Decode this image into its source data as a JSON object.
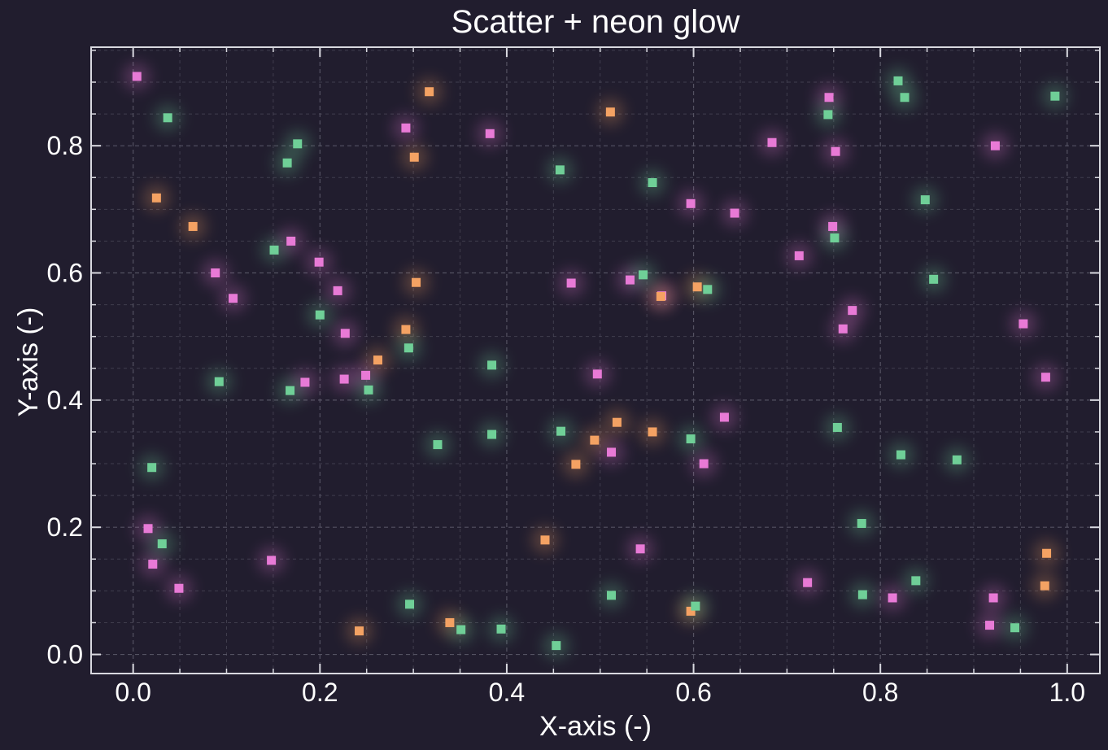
{
  "chart_data": {
    "type": "scatter",
    "title": "Scatter + neon glow",
    "xlabel": "X-axis (-)",
    "ylabel": "Y-axis (-)",
    "xlim": [
      -0.045,
      1.035
    ],
    "ylim": [
      -0.03,
      0.955
    ],
    "xticks": [
      0.0,
      0.2,
      0.4,
      0.6,
      0.8,
      1.0
    ],
    "xtick_labels": [
      "0.0",
      "0.2",
      "0.4",
      "0.6",
      "0.8",
      "1.0"
    ],
    "yticks": [
      0.0,
      0.2,
      0.4,
      0.6,
      0.8
    ],
    "ytick_labels": [
      "0.0",
      "0.2",
      "0.4",
      "0.6",
      "0.8"
    ],
    "grid": true,
    "colors": {
      "background": "#211d2e",
      "axes": "#d9d9e0",
      "grid": "#5a5868",
      "text": "#ffffff"
    },
    "series": [
      {
        "color": "#e87ad6",
        "points": [
          [
            0.004,
            0.909
          ],
          [
            0.292,
            0.828
          ],
          [
            0.382,
            0.819
          ],
          [
            0.169,
            0.65
          ],
          [
            0.199,
            0.617
          ],
          [
            0.088,
            0.6
          ],
          [
            0.107,
            0.56
          ],
          [
            0.219,
            0.572
          ],
          [
            0.227,
            0.505
          ],
          [
            0.184,
            0.428
          ],
          [
            0.226,
            0.433
          ],
          [
            0.249,
            0.439
          ],
          [
            0.016,
            0.198
          ],
          [
            0.021,
            0.142
          ],
          [
            0.049,
            0.104
          ],
          [
            0.148,
            0.148
          ],
          [
            0.469,
            0.584
          ],
          [
            0.532,
            0.589
          ],
          [
            0.566,
            0.564
          ],
          [
            0.597,
            0.709
          ],
          [
            0.644,
            0.694
          ],
          [
            0.684,
            0.805
          ],
          [
            0.713,
            0.627
          ],
          [
            0.745,
            0.876
          ],
          [
            0.752,
            0.791
          ],
          [
            0.749,
            0.673
          ],
          [
            0.77,
            0.541
          ],
          [
            0.76,
            0.512
          ],
          [
            0.497,
            0.441
          ],
          [
            0.512,
            0.318
          ],
          [
            0.611,
            0.3
          ],
          [
            0.633,
            0.373
          ],
          [
            0.543,
            0.166
          ],
          [
            0.722,
            0.113
          ],
          [
            0.813,
            0.089
          ],
          [
            0.923,
            0.8
          ],
          [
            0.953,
            0.52
          ],
          [
            0.977,
            0.436
          ],
          [
            0.921,
            0.089
          ],
          [
            0.917,
            0.046
          ]
        ]
      },
      {
        "color": "#f4a263",
        "points": [
          [
            0.317,
            0.885
          ],
          [
            0.511,
            0.853
          ],
          [
            0.301,
            0.782
          ],
          [
            0.025,
            0.718
          ],
          [
            0.064,
            0.673
          ],
          [
            0.303,
            0.585
          ],
          [
            0.292,
            0.511
          ],
          [
            0.262,
            0.463
          ],
          [
            0.565,
            0.563
          ],
          [
            0.604,
            0.578
          ],
          [
            0.518,
            0.365
          ],
          [
            0.556,
            0.35
          ],
          [
            0.494,
            0.337
          ],
          [
            0.474,
            0.299
          ],
          [
            0.441,
            0.18
          ],
          [
            0.339,
            0.05
          ],
          [
            0.242,
            0.037
          ],
          [
            0.597,
            0.068
          ],
          [
            0.978,
            0.159
          ],
          [
            0.976,
            0.108
          ]
        ]
      },
      {
        "color": "#6fcf97",
        "points": [
          [
            0.037,
            0.844
          ],
          [
            0.176,
            0.803
          ],
          [
            0.165,
            0.773
          ],
          [
            0.151,
            0.636
          ],
          [
            0.2,
            0.534
          ],
          [
            0.295,
            0.482
          ],
          [
            0.092,
            0.429
          ],
          [
            0.168,
            0.415
          ],
          [
            0.252,
            0.416
          ],
          [
            0.02,
            0.294
          ],
          [
            0.031,
            0.174
          ],
          [
            0.326,
            0.33
          ],
          [
            0.384,
            0.455
          ],
          [
            0.384,
            0.346
          ],
          [
            0.458,
            0.351
          ],
          [
            0.457,
            0.762
          ],
          [
            0.556,
            0.742
          ],
          [
            0.546,
            0.597
          ],
          [
            0.615,
            0.574
          ],
          [
            0.597,
            0.339
          ],
          [
            0.744,
            0.849
          ],
          [
            0.751,
            0.655
          ],
          [
            0.754,
            0.357
          ],
          [
            0.819,
            0.902
          ],
          [
            0.826,
            0.876
          ],
          [
            0.848,
            0.715
          ],
          [
            0.857,
            0.59
          ],
          [
            0.822,
            0.314
          ],
          [
            0.882,
            0.306
          ],
          [
            0.78,
            0.206
          ],
          [
            0.781,
            0.094
          ],
          [
            0.838,
            0.116
          ],
          [
            0.944,
            0.042
          ],
          [
            0.987,
            0.878
          ],
          [
            0.296,
            0.079
          ],
          [
            0.351,
            0.039
          ],
          [
            0.394,
            0.04
          ],
          [
            0.453,
            0.014
          ],
          [
            0.512,
            0.093
          ],
          [
            0.602,
            0.076
          ]
        ]
      }
    ]
  }
}
